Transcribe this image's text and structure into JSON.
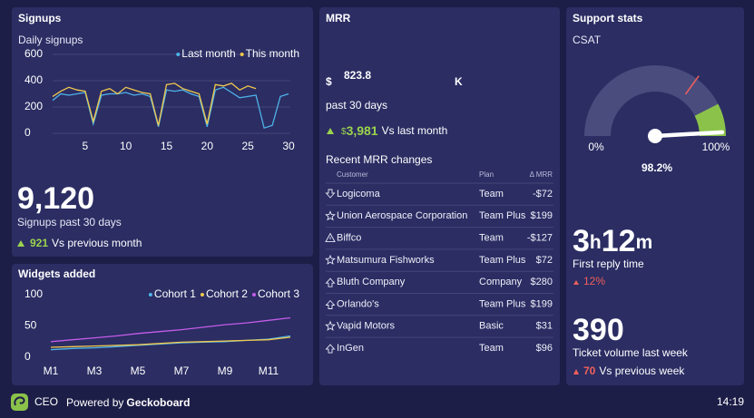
{
  "signups": {
    "title": "Signups",
    "total": "9,120",
    "total_label": "Signups past 30 days",
    "change": "921",
    "change_label": "Vs previous month",
    "chart": {
      "type": "line",
      "title": "Daily signups",
      "x": [
        1,
        2,
        3,
        4,
        5,
        6,
        7,
        8,
        9,
        10,
        11,
        12,
        13,
        14,
        15,
        16,
        17,
        18,
        19,
        20,
        21,
        22,
        23,
        24,
        25,
        26,
        27,
        28,
        29,
        30
      ],
      "series": [
        {
          "name": "Last month",
          "color": "#4fb3e8",
          "values": [
            250,
            300,
            290,
            300,
            310,
            70,
            290,
            300,
            300,
            310,
            290,
            300,
            280,
            50,
            330,
            320,
            330,
            300,
            280,
            50,
            330,
            350,
            310,
            270,
            280,
            290,
            40,
            60,
            280,
            300
          ]
        },
        {
          "name": "This month",
          "color": "#f2c94c",
          "values": [
            280,
            320,
            350,
            330,
            320,
            90,
            320,
            340,
            300,
            350,
            330,
            310,
            300,
            60,
            370,
            380,
            340,
            320,
            300,
            70,
            370,
            360,
            380,
            330,
            360,
            340,
            null,
            null,
            null,
            null
          ]
        }
      ],
      "xlim": [
        1,
        30
      ],
      "ylim": [
        0,
        600
      ],
      "xticks": [
        5,
        10,
        15,
        20,
        25,
        30
      ],
      "yticks": [
        0,
        200,
        400,
        600
      ],
      "grid": true,
      "legend": "top-right"
    }
  },
  "widgets": {
    "chart": {
      "type": "line",
      "title": "Widgets added",
      "categories": [
        "M1",
        null,
        "M3",
        null,
        "M5",
        null,
        "M7",
        null,
        "M9",
        null,
        "M11",
        null
      ],
      "series": [
        {
          "name": "Cohort 1",
          "color": "#4fb3e8",
          "values": [
            12,
            14,
            15,
            17,
            19,
            21,
            23,
            24,
            25,
            27,
            29,
            34
          ]
        },
        {
          "name": "Cohort 2",
          "color": "#f2c94c",
          "values": [
            16,
            17,
            18,
            19,
            20,
            22,
            24,
            25,
            26,
            27,
            28,
            32
          ]
        },
        {
          "name": "Cohort 3",
          "color": "#c45ce8",
          "values": [
            25,
            28,
            31,
            34,
            38,
            41,
            44,
            48,
            52,
            55,
            59,
            63
          ]
        }
      ],
      "ylim": [
        0,
        100
      ],
      "yticks": [
        0,
        50,
        100
      ],
      "legend": "top-right"
    }
  },
  "mrr": {
    "title": "MRR",
    "currency": "$",
    "value": "823.8",
    "suffix": "K",
    "period": "past 30 days",
    "change_currency": "$",
    "change": "3,981",
    "change_label": "Vs last month",
    "changes": {
      "title": "Recent MRR changes",
      "columns": [
        "Customer",
        "Plan",
        "Δ MRR"
      ],
      "rows": [
        {
          "customer": "Logicoma",
          "plan": "Team",
          "delta": "-$72"
        },
        {
          "customer": "Union Aerospace Corporation",
          "plan": "Team Plus",
          "delta": "$199"
        },
        {
          "customer": "Biffco",
          "plan": "Team",
          "delta": "-$127"
        },
        {
          "customer": "Matsumura Fishworks",
          "plan": "Team Plus",
          "delta": "$72"
        },
        {
          "customer": "Bluth Company",
          "plan": "Company",
          "delta": "$280"
        },
        {
          "customer": "Orlando's",
          "plan": "Team Plus",
          "delta": "$199"
        },
        {
          "customer": "Vapid Motors",
          "plan": "Basic",
          "delta": "$31"
        },
        {
          "customer": "InGen",
          "plan": "Team",
          "delta": "$96"
        }
      ]
    }
  },
  "support": {
    "title": "Support stats",
    "csat": {
      "title": "CSAT",
      "min": {
        "value": 0,
        "label": "0%"
      },
      "max": {
        "value": 100,
        "label": "100%"
      },
      "value": 98.2,
      "value_label": "98.2%",
      "target": 70,
      "good_from": 85
    },
    "reply": {
      "hours": "3",
      "hours_unit": "h",
      "minutes": "12",
      "minutes_unit": "m",
      "label": "First reply time",
      "change": "12%"
    },
    "tickets": {
      "value": "390",
      "label": "Ticket volume last week",
      "change": "70",
      "change_label": "Vs previous week"
    }
  },
  "footer": {
    "name": "CEO",
    "powered": "Powered by",
    "brand": "Geckoboard",
    "time": "14:19"
  }
}
